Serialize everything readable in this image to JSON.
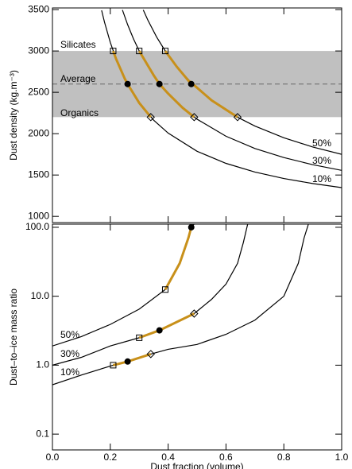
{
  "chart_data": [
    {
      "type": "line",
      "ylabel": "Dust density (kg.m⁻³)",
      "xlim": [
        0,
        1
      ],
      "xticks": [
        0,
        0.2,
        0.4,
        0.6,
        0.8,
        1
      ],
      "ylim": [
        925,
        3520
      ],
      "yticks": [
        1000,
        1500,
        2000,
        2500,
        3000,
        3500
      ],
      "band": {
        "range": [
          2200,
          3000
        ],
        "color": "#c0c0c0"
      },
      "reference_line": 2600,
      "annotations": [
        "Silicates",
        "Average",
        "Organics"
      ],
      "highlight_color": "#c8901a",
      "series": [
        {
          "name": "10%",
          "color": "#000000",
          "x": [
            0.17,
            0.18,
            0.2,
            0.22,
            0.25,
            0.3,
            0.35,
            0.4,
            0.5,
            0.6,
            0.7,
            0.8,
            0.9,
            1.0
          ],
          "values": [
            3491,
            3348,
            3104,
            2904,
            2665,
            2372,
            2163,
            2007,
            1787,
            1641,
            1536,
            1458,
            1397,
            1348
          ],
          "marks": [
            {
              "shape": "square",
              "x": 0.21,
              "value": 3000
            },
            {
              "shape": "dot",
              "x": 0.26,
              "value": 2600
            },
            {
              "shape": "diamond",
              "x": 0.34,
              "value": 2200
            }
          ]
        },
        {
          "name": "30%",
          "color": "#000000",
          "x": [
            0.242,
            0.26,
            0.28,
            0.3,
            0.35,
            0.4,
            0.45,
            0.5,
            0.6,
            0.7,
            0.8,
            0.9,
            1.0
          ],
          "values": [
            3495,
            3318,
            3148,
            3000,
            2706,
            2485,
            2313,
            2175,
            1969,
            1821,
            1711,
            1625,
            1556
          ],
          "marks": [
            {
              "shape": "square",
              "x": 0.3,
              "value": 3000
            },
            {
              "shape": "dot",
              "x": 0.37,
              "value": 2600
            },
            {
              "shape": "diamond",
              "x": 0.49,
              "value": 2200
            }
          ]
        },
        {
          "name": "50%",
          "color": "#000000",
          "x": [
            0.314,
            0.33,
            0.36,
            0.39,
            0.43,
            0.48,
            0.55,
            0.64,
            0.7,
            0.8,
            0.9,
            1.0
          ],
          "values": [
            3496,
            3372,
            3170,
            3000,
            2809,
            2616,
            2404,
            2199,
            2092,
            1950,
            1839,
            1750
          ],
          "marks": [
            {
              "shape": "square",
              "x": 0.39,
              "value": 3000
            },
            {
              "shape": "dot",
              "x": 0.48,
              "value": 2600
            },
            {
              "shape": "diamond",
              "x": 0.64,
              "value": 2200
            }
          ]
        }
      ]
    },
    {
      "type": "line",
      "log": true,
      "xlabel": "Dust fraction (volume)",
      "ylabel": "Dust–to–ice mass ratio",
      "xlim": [
        0,
        1
      ],
      "xticks": [
        {
          "value": 0,
          "label": "0.0"
        },
        0.2,
        0.4,
        0.6,
        0.8,
        {
          "value": 1,
          "label": "1.0"
        }
      ],
      "ylim": [
        0.059,
        111
      ],
      "yticks": [
        {
          "value": 0.1,
          "label": "0.1"
        },
        {
          "value": 1,
          "label": "1.0"
        },
        {
          "value": 10,
          "label": "10.0"
        },
        {
          "value": 100,
          "label": "100.0"
        }
      ],
      "highlight_color": "#c8901a",
      "series": [
        {
          "name": "50%",
          "color": "#000000",
          "x": [
            0,
            0.1,
            0.2,
            0.3,
            0.39,
            0.44,
            0.47,
            0.48,
            0.49
          ],
          "values": [
            1.9,
            2.6,
            3.9,
            6.5,
            12.5,
            30,
            70,
            100,
            111
          ],
          "marks": [
            {
              "shape": "square",
              "x": 0.39,
              "value": 12.5
            },
            {
              "shape": "dot",
              "x": 0.48,
              "value": 100
            }
          ]
        },
        {
          "name": "30%",
          "color": "#000000",
          "x": [
            0,
            0.1,
            0.2,
            0.3,
            0.37,
            0.49,
            0.55,
            0.6,
            0.64,
            0.66,
            0.675
          ],
          "values": [
            1.0,
            1.3,
            1.9,
            2.5,
            3.2,
            5.6,
            9,
            15,
            30,
            60,
            111
          ],
          "marks": [
            {
              "shape": "square",
              "x": 0.3,
              "value": 2.5
            },
            {
              "shape": "dot",
              "x": 0.37,
              "value": 3.2
            },
            {
              "shape": "diamond",
              "x": 0.49,
              "value": 5.6
            }
          ]
        },
        {
          "name": "10%",
          "color": "#000000",
          "x": [
            0,
            0.1,
            0.21,
            0.26,
            0.34,
            0.4,
            0.5,
            0.6,
            0.7,
            0.8,
            0.85,
            0.87,
            0.885
          ],
          "values": [
            0.52,
            0.72,
            1.0,
            1.13,
            1.45,
            1.7,
            2.0,
            2.8,
            4.5,
            10,
            30,
            70,
            111
          ],
          "marks": [
            {
              "shape": "square",
              "x": 0.21,
              "value": 1.0
            },
            {
              "shape": "dot",
              "x": 0.26,
              "value": 1.13
            },
            {
              "shape": "diamond",
              "x": 0.34,
              "value": 1.45
            }
          ]
        }
      ]
    }
  ]
}
